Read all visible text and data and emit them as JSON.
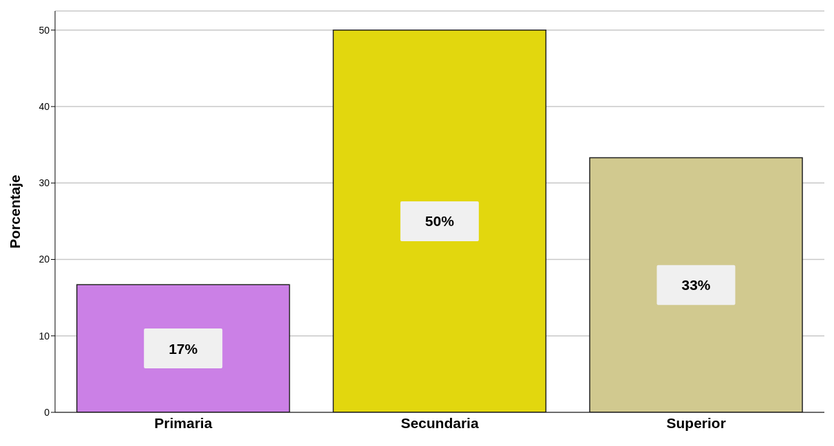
{
  "chart_data": {
    "type": "bar",
    "ylabel": "Porcentaje",
    "categories": [
      "Primaria",
      "Secundaria",
      "Superior"
    ],
    "values": [
      16.7,
      50,
      33.3
    ],
    "colors": [
      "#cb80e6",
      "#e2d70e",
      "#d1c98f"
    ],
    "value_labels": [
      "17%",
      "50%",
      "33%"
    ],
    "ylim": [
      0,
      52.5
    ],
    "yticks": [
      0,
      10,
      20,
      30,
      40,
      50
    ],
    "grid": "y"
  }
}
